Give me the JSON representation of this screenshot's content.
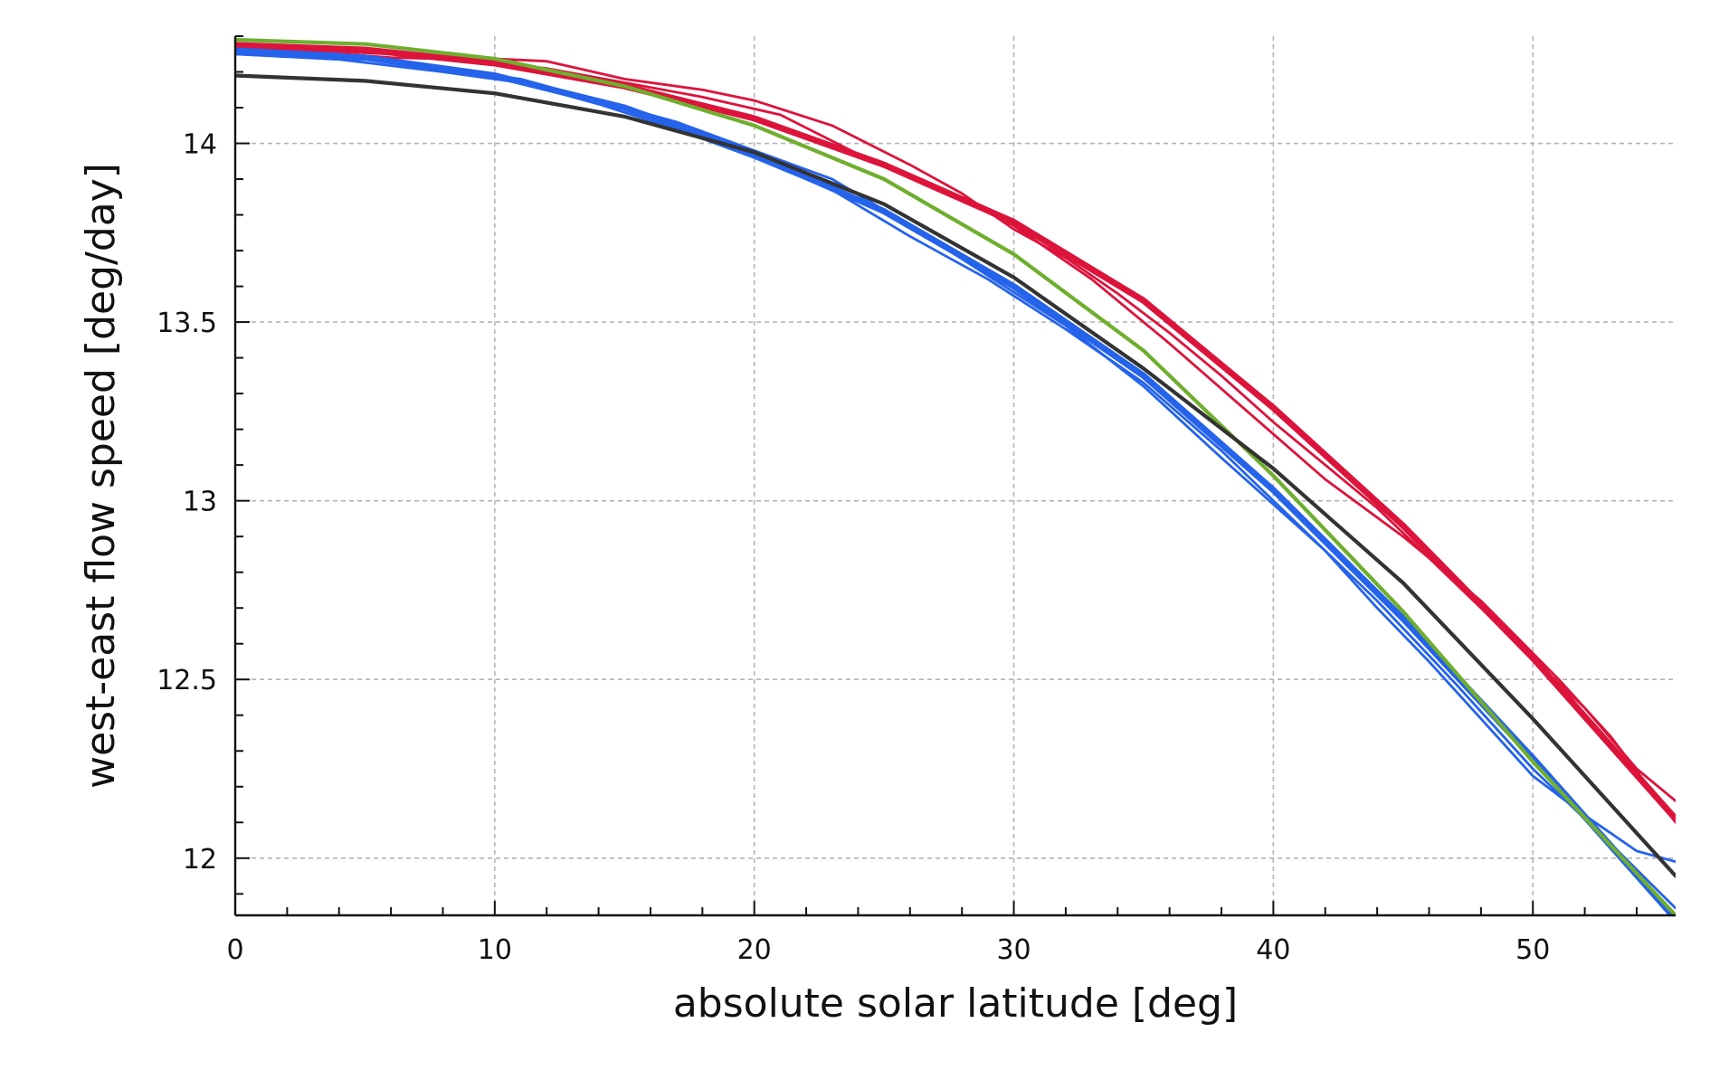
{
  "chart_data": {
    "type": "line",
    "title": "",
    "xlabel": "absolute solar latitude [deg]",
    "ylabel": "west-east flow speed [deg/day]",
    "xlim": [
      0,
      55.5
    ],
    "ylim": [
      11.84,
      14.3
    ],
    "x_ticks": [
      0,
      10,
      20,
      30,
      40,
      50
    ],
    "x_tick_labels": [
      "0",
      "10",
      "20",
      "30",
      "40",
      "50"
    ],
    "y_ticks": [
      12,
      12.5,
      13,
      13.5,
      14
    ],
    "y_tick_labels": [
      "12",
      "12.5",
      "13",
      "13.5",
      "14"
    ],
    "grid": true,
    "legend": "none",
    "series": [
      {
        "color": "#dc143c",
        "style": "thick-smooth",
        "points": [
          [
            0,
            14.275
          ],
          [
            5,
            14.262
          ],
          [
            10,
            14.224
          ],
          [
            15,
            14.16
          ],
          [
            20,
            14.07
          ],
          [
            25,
            13.94
          ],
          [
            30,
            13.78
          ],
          [
            35,
            13.56
          ],
          [
            40,
            13.26
          ],
          [
            45,
            12.93
          ],
          [
            50,
            12.56
          ],
          [
            55.5,
            12.11
          ]
        ]
      },
      {
        "color": "#dc143c",
        "style": "thin-noisy",
        "points": [
          [
            0,
            14.25
          ],
          [
            3,
            14.26
          ],
          [
            6,
            14.25
          ],
          [
            9,
            14.24
          ],
          [
            12,
            14.23
          ],
          [
            15,
            14.18
          ],
          [
            18,
            14.15
          ],
          [
            20,
            14.12
          ],
          [
            23,
            14.05
          ],
          [
            26,
            13.94
          ],
          [
            28,
            13.86
          ],
          [
            30,
            13.76
          ],
          [
            32,
            13.68
          ],
          [
            34,
            13.58
          ],
          [
            36,
            13.47
          ],
          [
            38,
            13.35
          ],
          [
            40,
            13.22
          ],
          [
            42,
            13.1
          ],
          [
            44,
            12.98
          ],
          [
            46,
            12.84
          ],
          [
            48,
            12.7
          ],
          [
            50,
            12.56
          ],
          [
            52,
            12.42
          ],
          [
            54,
            12.25
          ],
          [
            55.5,
            12.16
          ]
        ]
      },
      {
        "color": "#dc143c",
        "style": "thin-noisy",
        "points": [
          [
            0,
            14.265
          ],
          [
            3,
            14.255
          ],
          [
            6,
            14.24
          ],
          [
            9,
            14.235
          ],
          [
            12,
            14.21
          ],
          [
            15,
            14.17
          ],
          [
            18,
            14.13
          ],
          [
            21,
            14.08
          ],
          [
            24,
            13.97
          ],
          [
            27,
            13.88
          ],
          [
            30,
            13.77
          ],
          [
            33,
            13.62
          ],
          [
            36,
            13.44
          ],
          [
            39,
            13.25
          ],
          [
            42,
            13.06
          ],
          [
            45,
            12.9
          ],
          [
            48,
            12.72
          ],
          [
            51,
            12.5
          ],
          [
            53,
            12.34
          ],
          [
            55.5,
            12.1
          ]
        ]
      },
      {
        "color": "#2563eb",
        "style": "thick-smooth",
        "points": [
          [
            0,
            14.255
          ],
          [
            5,
            14.24
          ],
          [
            10,
            14.19
          ],
          [
            15,
            14.1
          ],
          [
            20,
            13.97
          ],
          [
            25,
            13.81
          ],
          [
            30,
            13.6
          ],
          [
            35,
            13.35
          ],
          [
            40,
            13.03
          ],
          [
            45,
            12.67
          ],
          [
            50,
            12.28
          ],
          [
            55.5,
            11.83
          ]
        ]
      },
      {
        "color": "#2563eb",
        "style": "thin-noisy",
        "points": [
          [
            0,
            14.265
          ],
          [
            4,
            14.25
          ],
          [
            8,
            14.21
          ],
          [
            11,
            14.18
          ],
          [
            14,
            14.12
          ],
          [
            17,
            14.06
          ],
          [
            20,
            13.98
          ],
          [
            23,
            13.9
          ],
          [
            26,
            13.77
          ],
          [
            29,
            13.63
          ],
          [
            32,
            13.49
          ],
          [
            35,
            13.32
          ],
          [
            38,
            13.12
          ],
          [
            40,
            12.99
          ],
          [
            42,
            12.86
          ],
          [
            44,
            12.7
          ],
          [
            46,
            12.55
          ],
          [
            48,
            12.39
          ],
          [
            50,
            12.23
          ],
          [
            52,
            12.12
          ],
          [
            54,
            12.02
          ],
          [
            55.5,
            11.99
          ]
        ]
      },
      {
        "color": "#2563eb",
        "style": "thin-noisy",
        "points": [
          [
            0,
            14.25
          ],
          [
            4,
            14.235
          ],
          [
            8,
            14.2
          ],
          [
            11,
            14.17
          ],
          [
            14,
            14.11
          ],
          [
            17,
            14.04
          ],
          [
            20,
            13.96
          ],
          [
            23,
            13.87
          ],
          [
            26,
            13.74
          ],
          [
            29,
            13.62
          ],
          [
            32,
            13.48
          ],
          [
            35,
            13.33
          ],
          [
            38,
            13.14
          ],
          [
            41,
            12.93
          ],
          [
            44,
            12.72
          ],
          [
            47,
            12.49
          ],
          [
            50,
            12.25
          ],
          [
            53,
            12.04
          ],
          [
            55.5,
            11.86
          ]
        ]
      },
      {
        "color": "#6fae2e",
        "style": "medium-smooth",
        "points": [
          [
            0,
            14.29
          ],
          [
            5,
            14.278
          ],
          [
            10,
            14.237
          ],
          [
            15,
            14.16
          ],
          [
            20,
            14.05
          ],
          [
            25,
            13.9
          ],
          [
            30,
            13.69
          ],
          [
            35,
            13.42
          ],
          [
            40,
            13.07
          ],
          [
            45,
            12.69
          ],
          [
            50,
            12.27
          ],
          [
            55.5,
            11.84
          ]
        ]
      },
      {
        "color": "#333333",
        "style": "medium-smooth",
        "points": [
          [
            0,
            14.19
          ],
          [
            5,
            14.175
          ],
          [
            10,
            14.14
          ],
          [
            15,
            14.075
          ],
          [
            20,
            13.975
          ],
          [
            25,
            13.83
          ],
          [
            30,
            13.625
          ],
          [
            35,
            13.37
          ],
          [
            40,
            13.09
          ],
          [
            45,
            12.77
          ],
          [
            50,
            12.39
          ],
          [
            55.5,
            11.95
          ]
        ]
      }
    ]
  }
}
